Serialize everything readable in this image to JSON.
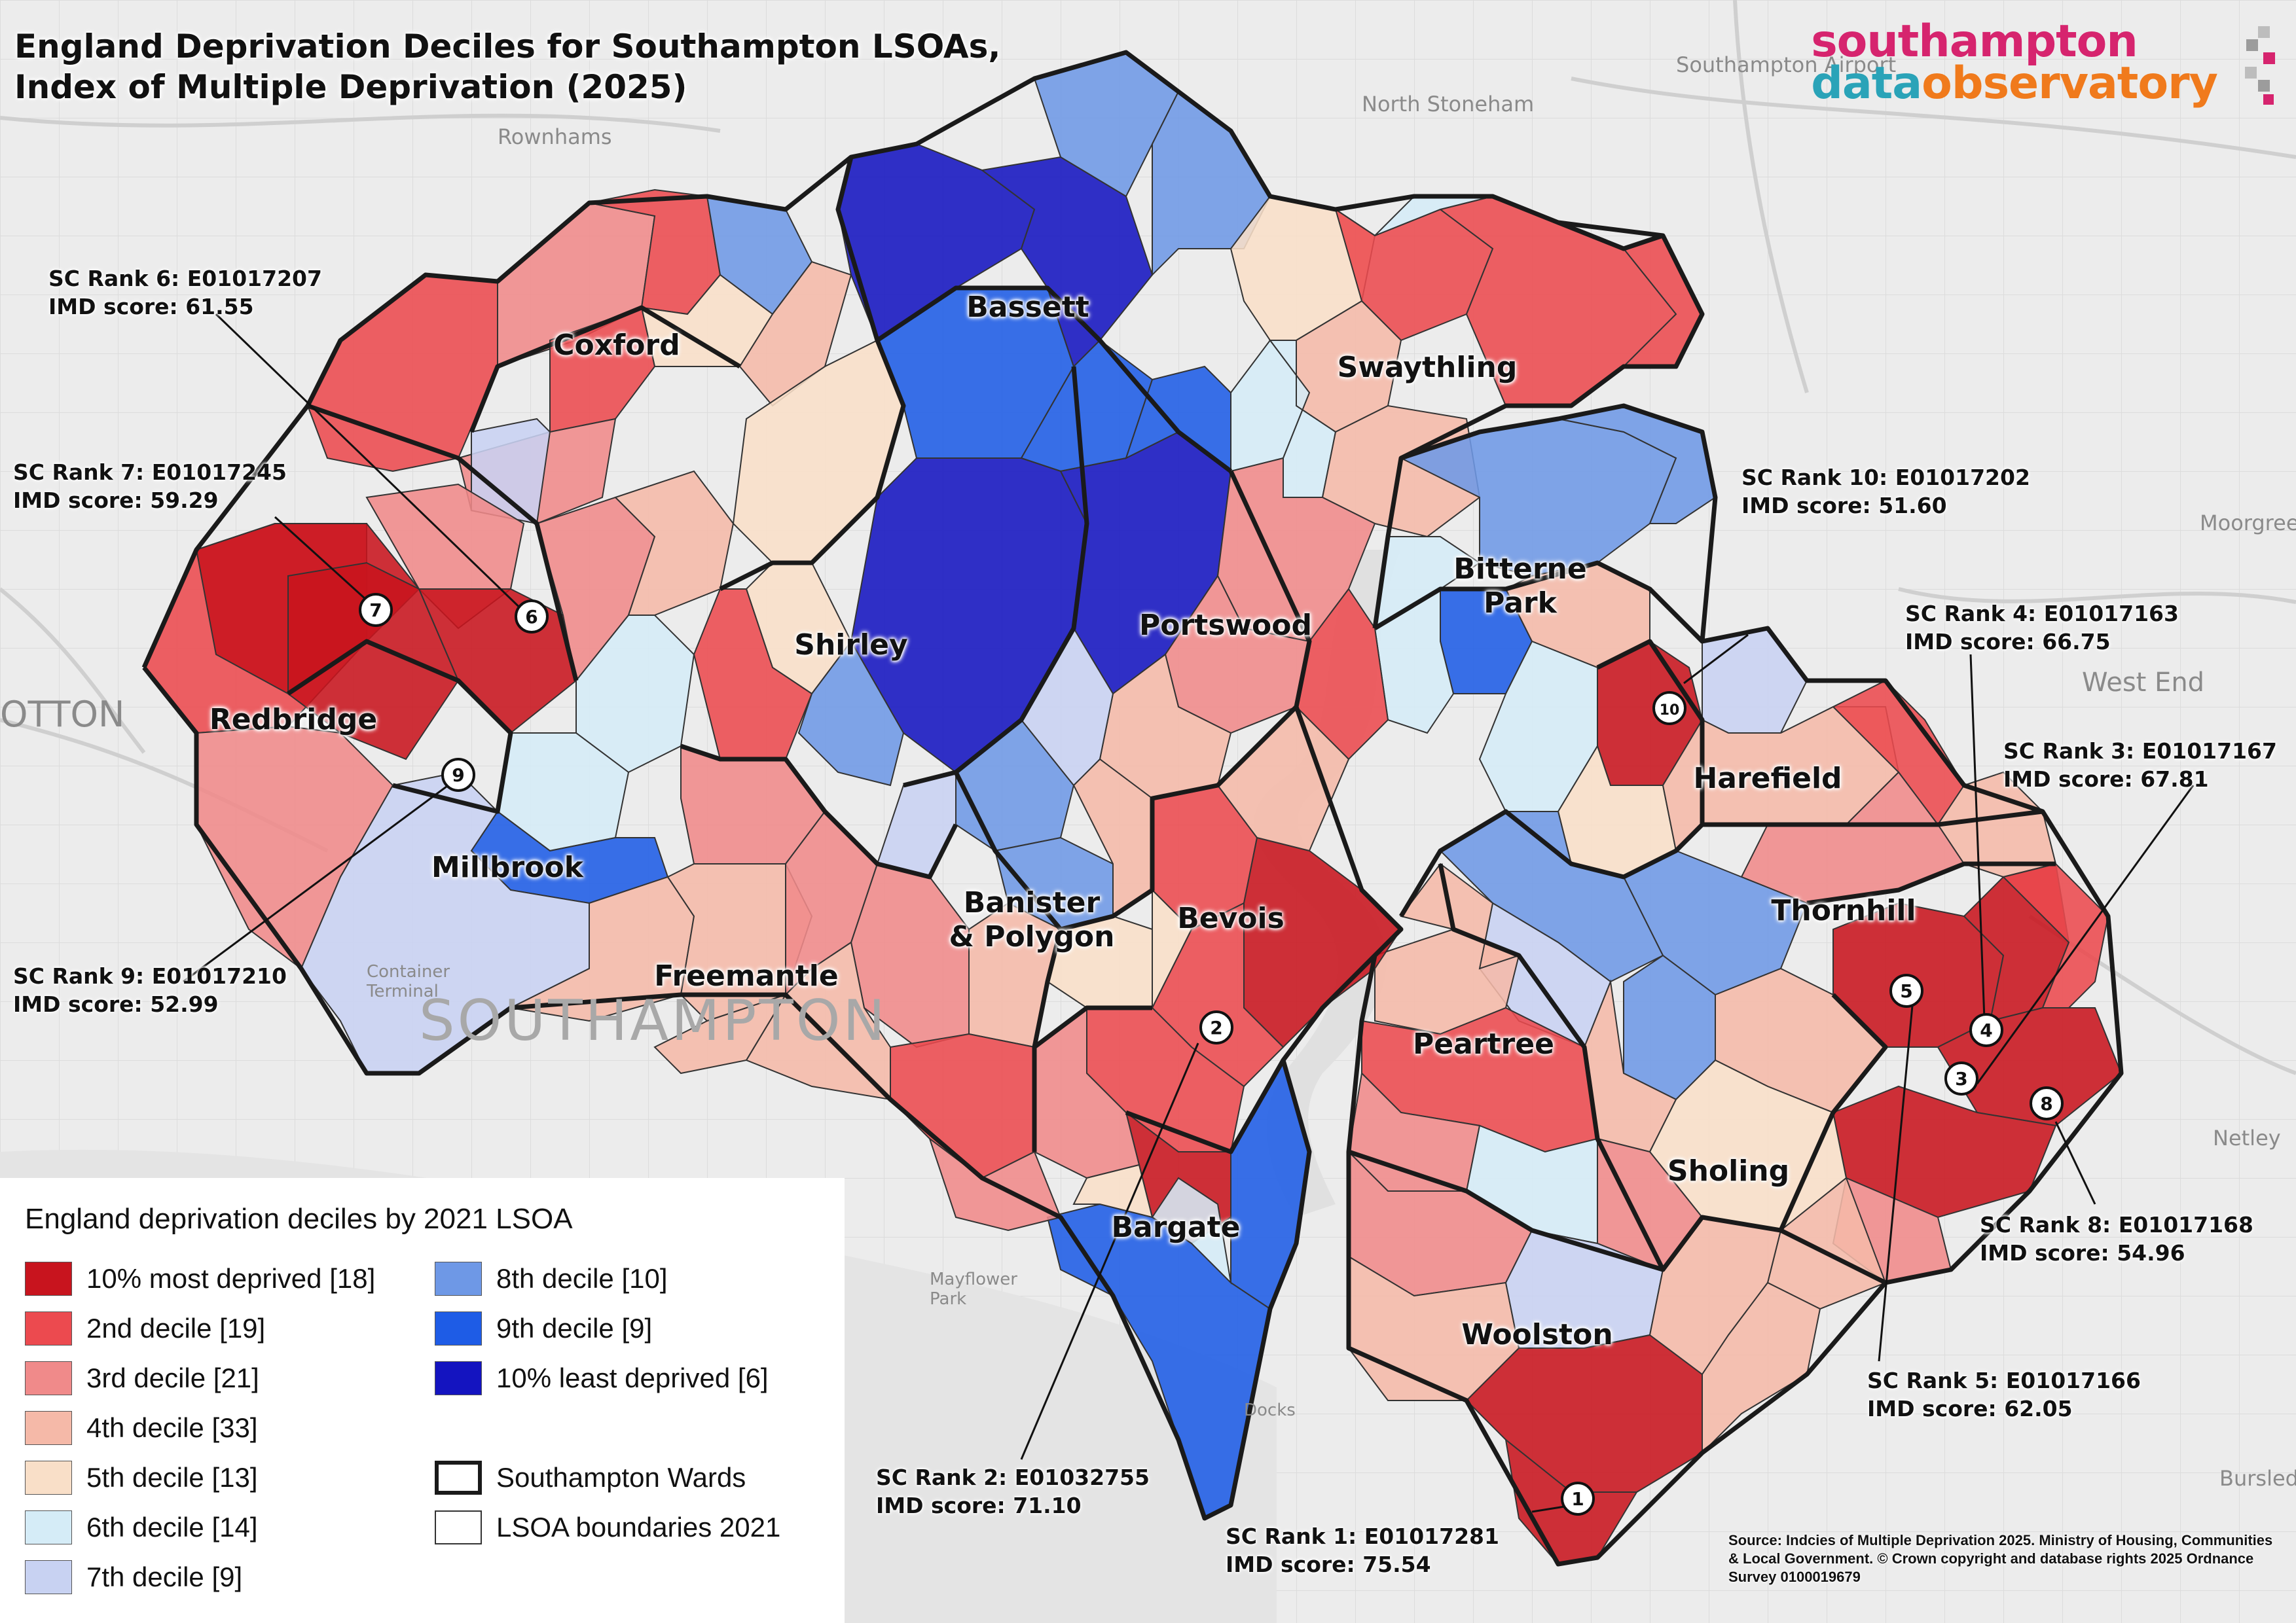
{
  "title": {
    "line1": "England Deprivation Deciles for Southampton LSOAs,",
    "line2": "Index of Multiple Deprivation (2025)"
  },
  "brand": {
    "line1": "southampton",
    "line2a": "data",
    "line2b": "observatory"
  },
  "colors": {
    "d1": "#c8141e",
    "d2": "#ec4a4f",
    "d3": "#f08a8a",
    "d4": "#f5b9a8",
    "d5": "#f9dfc8",
    "d6": "#d5ecf7",
    "d7": "#c8d2f2",
    "d8": "#6e98e6",
    "d9": "#1e5ce6",
    "d10": "#1414c0",
    "ward_border": "#1a1a1a",
    "lsoa_border": "#333333"
  },
  "wards": [
    {
      "id": "coxford",
      "label": "Coxford"
    },
    {
      "id": "bassett",
      "label": "Bassett"
    },
    {
      "id": "swaythling",
      "label": "Swaythling"
    },
    {
      "id": "bitterne-park",
      "label": "Bitterne\nPark"
    },
    {
      "id": "redbridge",
      "label": "Redbridge"
    },
    {
      "id": "shirley",
      "label": "Shirley"
    },
    {
      "id": "portswood",
      "label": "Portswood"
    },
    {
      "id": "harefield",
      "label": "Harefield"
    },
    {
      "id": "millbrook",
      "label": "Millbrook"
    },
    {
      "id": "banister",
      "label": "Banister\n& Polygon"
    },
    {
      "id": "bevois",
      "label": "Bevois"
    },
    {
      "id": "thornhill",
      "label": "Thornhill"
    },
    {
      "id": "freemantle",
      "label": "Freemantle"
    },
    {
      "id": "peartree",
      "label": "Peartree"
    },
    {
      "id": "sholing",
      "label": "Sholing"
    },
    {
      "id": "bargate",
      "label": "Bargate"
    },
    {
      "id": "woolston",
      "label": "Woolston"
    }
  ],
  "ranks": [
    {
      "n": "1",
      "line1": "SC Rank 1: E01017281",
      "line2": "IMD score: 75.54"
    },
    {
      "n": "2",
      "line1": "SC Rank 2: E01032755",
      "line2": "IMD score: 71.10"
    },
    {
      "n": "3",
      "line1": "SC Rank 3: E01017167",
      "line2": "IMD score: 67.81"
    },
    {
      "n": "4",
      "line1": "SC Rank 4: E01017163",
      "line2": "IMD score: 66.75"
    },
    {
      "n": "5",
      "line1": "SC Rank 5: E01017166",
      "line2": "IMD score: 62.05"
    },
    {
      "n": "6",
      "line1": "SC Rank 6: E01017207",
      "line2": "IMD score: 61.55"
    },
    {
      "n": "7",
      "line1": "SC Rank 7: E01017245",
      "line2": "IMD score: 59.29"
    },
    {
      "n": "8",
      "line1": "SC Rank 8: E01017168",
      "line2": "IMD score: 54.96"
    },
    {
      "n": "9",
      "line1": "SC Rank 9: E01017210",
      "line2": "IMD score: 52.99"
    },
    {
      "n": "10",
      "line1": "SC Rank 10: E01017202",
      "line2": "IMD score: 51.60"
    }
  ],
  "legend": {
    "title": "England deprivation deciles by 2021 LSOA",
    "deciles": [
      {
        "label": "10% most deprived [18]",
        "color": "#c8141e"
      },
      {
        "label": "2nd decile [19]",
        "color": "#ec4a4f"
      },
      {
        "label": "3rd decile [21]",
        "color": "#f08a8a"
      },
      {
        "label": "4th decile [33]",
        "color": "#f5b9a8"
      },
      {
        "label": "5th decile [13]",
        "color": "#f9dfc8"
      },
      {
        "label": "6th decile [14]",
        "color": "#d5ecf7"
      },
      {
        "label": "7th decile [9]",
        "color": "#c8d2f2"
      },
      {
        "label": "8th decile [10]",
        "color": "#6e98e6"
      },
      {
        "label": "9th decile [9]",
        "color": "#1e5ce6"
      },
      {
        "label": "10% least deprived [6]",
        "color": "#1414c0"
      }
    ],
    "wards_label": "Southampton Wards",
    "lsoa_label": "LSOA boundaries 2021"
  },
  "basemap_labels": {
    "southampton": "SOUTHAMPTON",
    "rownhams": "Rownhams",
    "airport": "Southampton Airport",
    "north_stoneham": "North Stoneham",
    "totton": "OTTON",
    "moorgreen": "Moorgreen",
    "west_end": "West End",
    "container_terminal": "Container Terminal",
    "docks": "Docks",
    "mayflower_park": "Mayflower Park",
    "netley": "Netley",
    "bursledon": "Bursledon"
  },
  "source": "Source: Indcies of Multiple Deprivation 2025. Ministry of Housing, Communities & Local Government. © Crown copyright and database rights 2025 Ordnance Survey 0100019679"
}
